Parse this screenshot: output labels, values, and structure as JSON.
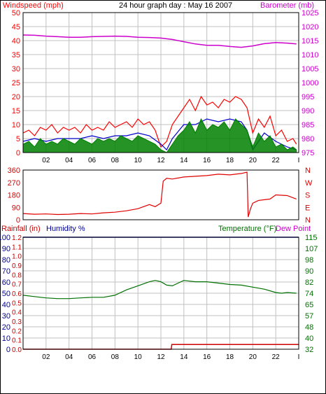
{
  "colors": {
    "wind": "#ff0000",
    "wind_avg": "#0000cc",
    "wind_gust_fill": "#008000",
    "baro": "#cc00cc",
    "direction": "#e00000",
    "humidity": "#000099",
    "temperature": "#007000",
    "rainfall": "#cc0000",
    "grid": "#c0c0c0",
    "axis": "#000000"
  },
  "chart_data": [
    {
      "type": "line",
      "id": "wind_baro",
      "title": "24 hour graph day : May 16 2007",
      "ylabel_left": "Windspeed (mph)",
      "ylabel_right": "Barometer (mb)",
      "x_ticks": [
        "02",
        "04",
        "06",
        "08",
        "10",
        "12",
        "14",
        "16",
        "18",
        "20",
        "22",
        "I"
      ],
      "y_left_ticks": [
        "0",
        "5",
        "10",
        "15",
        "20",
        "25",
        "30",
        "35",
        "40",
        "45",
        "50"
      ],
      "y_right_ticks": [
        "975",
        "980",
        "985",
        "990",
        "995",
        "1000",
        "1005",
        "1010",
        "1015",
        "1020",
        "1025"
      ],
      "ylim_left": [
        0,
        50
      ],
      "ylim_right": [
        975,
        1025
      ],
      "xlim": [
        0,
        24
      ],
      "grid": true,
      "series": [
        {
          "name": "Barometer",
          "axis": "right",
          "x": [
            0,
            1,
            2,
            3,
            4,
            5,
            6,
            7,
            8,
            9,
            10,
            11,
            12,
            13,
            14,
            15,
            16,
            17,
            18,
            19,
            20,
            21,
            22,
            23,
            23.8
          ],
          "values": [
            1017,
            1016.9,
            1016.6,
            1016.4,
            1016.2,
            1016.2,
            1016.4,
            1016.5,
            1016.6,
            1016.5,
            1016.2,
            1016.1,
            1015.9,
            1015.4,
            1014.6,
            1013.8,
            1013.3,
            1013.3,
            1012.9,
            1012.6,
            1013.1,
            1013.9,
            1014.3,
            1014.1,
            1013.8
          ]
        },
        {
          "name": "Wind gust",
          "axis": "left",
          "x": [
            0,
            0.5,
            1,
            1.5,
            2,
            2.5,
            3,
            3.5,
            4,
            4.5,
            5,
            5.5,
            6,
            6.5,
            7,
            7.5,
            8,
            8.5,
            9,
            9.5,
            10,
            10.5,
            11,
            11.5,
            12,
            12.5,
            13,
            13.5,
            14,
            14.5,
            15,
            15.5,
            16,
            16.5,
            17,
            17.5,
            18,
            18.5,
            19,
            19.5,
            20,
            20.5,
            21,
            21.5,
            22,
            22.5,
            23,
            23.5,
            23.8
          ],
          "values": [
            7,
            8,
            6,
            9,
            8,
            10,
            7,
            9,
            8,
            9,
            7,
            10,
            8,
            9,
            8,
            11,
            9,
            10,
            11,
            9,
            12,
            10,
            11,
            8,
            2,
            4,
            10,
            13,
            16,
            19,
            15,
            20,
            17,
            18,
            16,
            19,
            18,
            20,
            19,
            16,
            7,
            12,
            9,
            13,
            6,
            8,
            4,
            5,
            3
          ]
        },
        {
          "name": "Wind average",
          "axis": "left",
          "x": [
            0,
            1,
            2,
            3,
            4,
            5,
            6,
            7,
            8,
            9,
            10,
            11,
            12,
            12.5,
            13,
            14,
            15,
            16,
            17,
            18,
            19,
            19.5,
            20,
            21,
            22,
            23,
            23.8
          ],
          "values": [
            4,
            5,
            4,
            5,
            5,
            5,
            6,
            5,
            6,
            6,
            7,
            6,
            3,
            1,
            5,
            10,
            10,
            12,
            11,
            12,
            11,
            8,
            1,
            7,
            4,
            2,
            1
          ]
        },
        {
          "name": "Wind speed",
          "axis": "left",
          "x": [
            0,
            0.5,
            1,
            1.5,
            2,
            2.5,
            3,
            3.5,
            4,
            4.5,
            5,
            5.5,
            6,
            6.5,
            7,
            7.5,
            8,
            8.5,
            9,
            9.5,
            10,
            10.5,
            11,
            11.5,
            12,
            12.5,
            13,
            13.5,
            14,
            14.5,
            15,
            15.5,
            16,
            16.5,
            17,
            17.5,
            18,
            18.5,
            19,
            19.5,
            20,
            20.5,
            21,
            21.5,
            22,
            22.5,
            23,
            23.5,
            23.8
          ],
          "values": [
            3,
            4,
            2,
            5,
            3,
            4,
            3,
            5,
            4,
            3,
            5,
            4,
            3,
            5,
            4,
            5,
            4,
            6,
            5,
            4,
            6,
            5,
            4,
            3,
            1,
            0,
            3,
            6,
            8,
            11,
            7,
            12,
            8,
            10,
            9,
            11,
            8,
            12,
            10,
            8,
            2,
            7,
            4,
            6,
            2,
            3,
            1,
            2,
            1
          ]
        }
      ]
    },
    {
      "type": "line",
      "id": "direction",
      "y_left_ticks": [
        "0",
        "90",
        "180",
        "270",
        "360"
      ],
      "y_right_ticks": [
        "N",
        "E",
        "S",
        "W",
        "N"
      ],
      "ylim": [
        0,
        360
      ],
      "xlim": [
        0,
        24
      ],
      "grid": false,
      "series": [
        {
          "name": "Wind direction",
          "x": [
            0,
            1,
            2,
            3,
            4,
            5,
            6,
            7,
            8,
            9,
            10,
            11,
            11.5,
            12,
            12.2,
            12.5,
            13,
            14,
            15,
            16,
            17,
            18,
            19,
            19.5,
            19.6,
            19.8,
            20,
            20.5,
            21,
            21.5,
            22,
            23,
            23.8
          ],
          "values": [
            45,
            40,
            42,
            38,
            40,
            45,
            42,
            50,
            55,
            65,
            80,
            110,
            95,
            120,
            280,
            300,
            295,
            310,
            315,
            320,
            330,
            325,
            335,
            345,
            20,
            80,
            120,
            140,
            145,
            150,
            180,
            175,
            150
          ]
        }
      ]
    },
    {
      "type": "line",
      "id": "temp_hum_rain",
      "ylabel_left_1": "Rainfall (in)",
      "ylabel_left_2": "Humidity %",
      "ylabel_right_1": "Temperature (°F)",
      "ylabel_right_2": "Dew Point",
      "x_ticks": [
        "02",
        "04",
        "06",
        "08",
        "10",
        "12",
        "14",
        "16",
        "18",
        "20",
        "22",
        "I"
      ],
      "rain_ticks": [
        "0.0",
        "0.1",
        "0.2",
        "0.3",
        "0.4",
        "0.5",
        "0.6",
        "0.7",
        "0.8",
        "0.9",
        "1.0",
        "1.1",
        "1.2"
      ],
      "humidity_ticks": [
        "0",
        "10",
        "20",
        "30",
        "40",
        "50",
        "60",
        "70",
        "80",
        "90",
        "100"
      ],
      "temp_ticks": [
        "32",
        "40",
        "48",
        "57",
        "65",
        "74",
        "82",
        "90",
        "98",
        "107",
        "115"
      ],
      "ylim_humidity": [
        0,
        100
      ],
      "ylim_temp": [
        32,
        115
      ],
      "ylim_rain": [
        0,
        1.2
      ],
      "xlim": [
        0,
        24
      ],
      "grid": true,
      "series": [
        {
          "name": "Humidity",
          "axis": "humidity",
          "x": [
            0,
            24
          ],
          "values": [
            100,
            100
          ]
        },
        {
          "name": "Temperature",
          "axis": "temp",
          "x": [
            0,
            1,
            2,
            3,
            4,
            5,
            6,
            7,
            8,
            9,
            10,
            11,
            11.5,
            12,
            12.5,
            13,
            13.5,
            14,
            14.5,
            15,
            16,
            17,
            18,
            19,
            20,
            21,
            22,
            22.5,
            23,
            23.8
          ],
          "values": [
            72,
            71,
            70,
            69.5,
            69.5,
            70,
            70.5,
            70.5,
            72,
            76,
            79,
            82,
            83,
            82,
            79.5,
            79,
            81,
            83,
            82.5,
            82,
            82,
            81,
            80,
            79.5,
            78,
            76.5,
            74,
            73.5,
            74,
            73.5
          ]
        },
        {
          "name": "Rainfall",
          "axis": "rain",
          "x": [
            0,
            12.9,
            12.95,
            24
          ],
          "values": [
            0,
            0,
            0.05,
            0.05
          ]
        }
      ]
    }
  ]
}
